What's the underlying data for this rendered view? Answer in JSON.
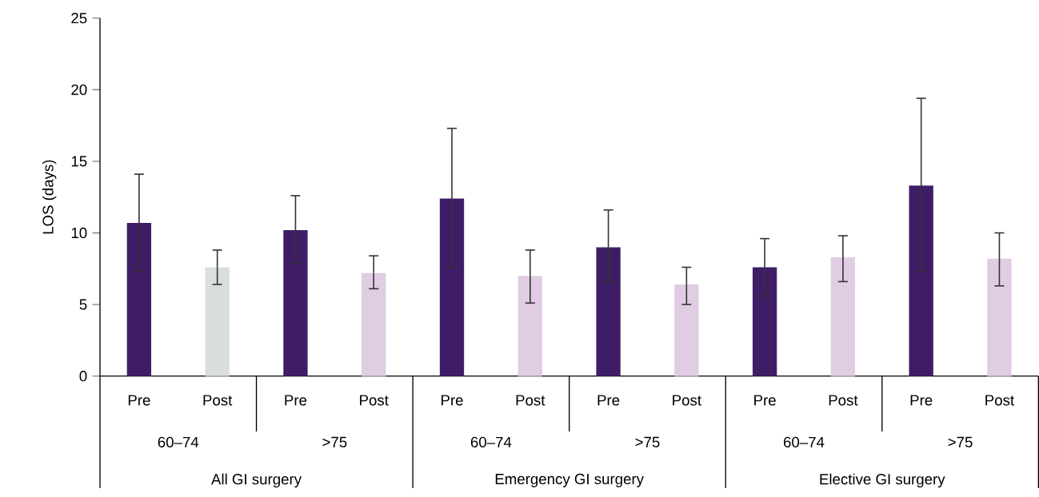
{
  "chart_data": {
    "type": "bar",
    "ylabel": "LOS (days)",
    "categories": [
      "Pre",
      "Post",
      "Pre",
      "Post",
      "Pre",
      "Post",
      "Pre",
      "Post",
      "Pre",
      "Post",
      "Pre",
      "Post"
    ],
    "values": [
      10.7,
      7.6,
      10.2,
      7.2,
      12.4,
      7.0,
      9.0,
      6.4,
      7.6,
      8.3,
      13.3,
      8.2
    ],
    "colors": [
      "#3f1d66",
      "#d9dfdf",
      "#3f1d66",
      "#e0cce3",
      "#3f1d66",
      "#e0cce3",
      "#3f1d66",
      "#e0cce3",
      "#3f1d66",
      "#e0cce3",
      "#3f1d66",
      "#e0cce3"
    ],
    "errors": [
      [
        7.3,
        14.1
      ],
      [
        6.4,
        8.8
      ],
      [
        7.9,
        12.6
      ],
      [
        6.1,
        8.4
      ],
      [
        7.6,
        17.3
      ],
      [
        5.1,
        8.8
      ],
      [
        6.6,
        11.6
      ],
      [
        5.0,
        7.6
      ],
      [
        5.6,
        9.6
      ],
      [
        6.6,
        9.8
      ],
      [
        7.3,
        19.4
      ],
      [
        6.3,
        10.0
      ]
    ],
    "ylim": [
      0,
      25
    ],
    "yticks": [
      0,
      5,
      10,
      15,
      20,
      25
    ],
    "annotations": [
      "60–74",
      ">75",
      "60–74",
      ">75",
      "60–74",
      ">75",
      "All GI surgery",
      "Emergency GI surgery",
      "Elective GI surgery"
    ]
  }
}
